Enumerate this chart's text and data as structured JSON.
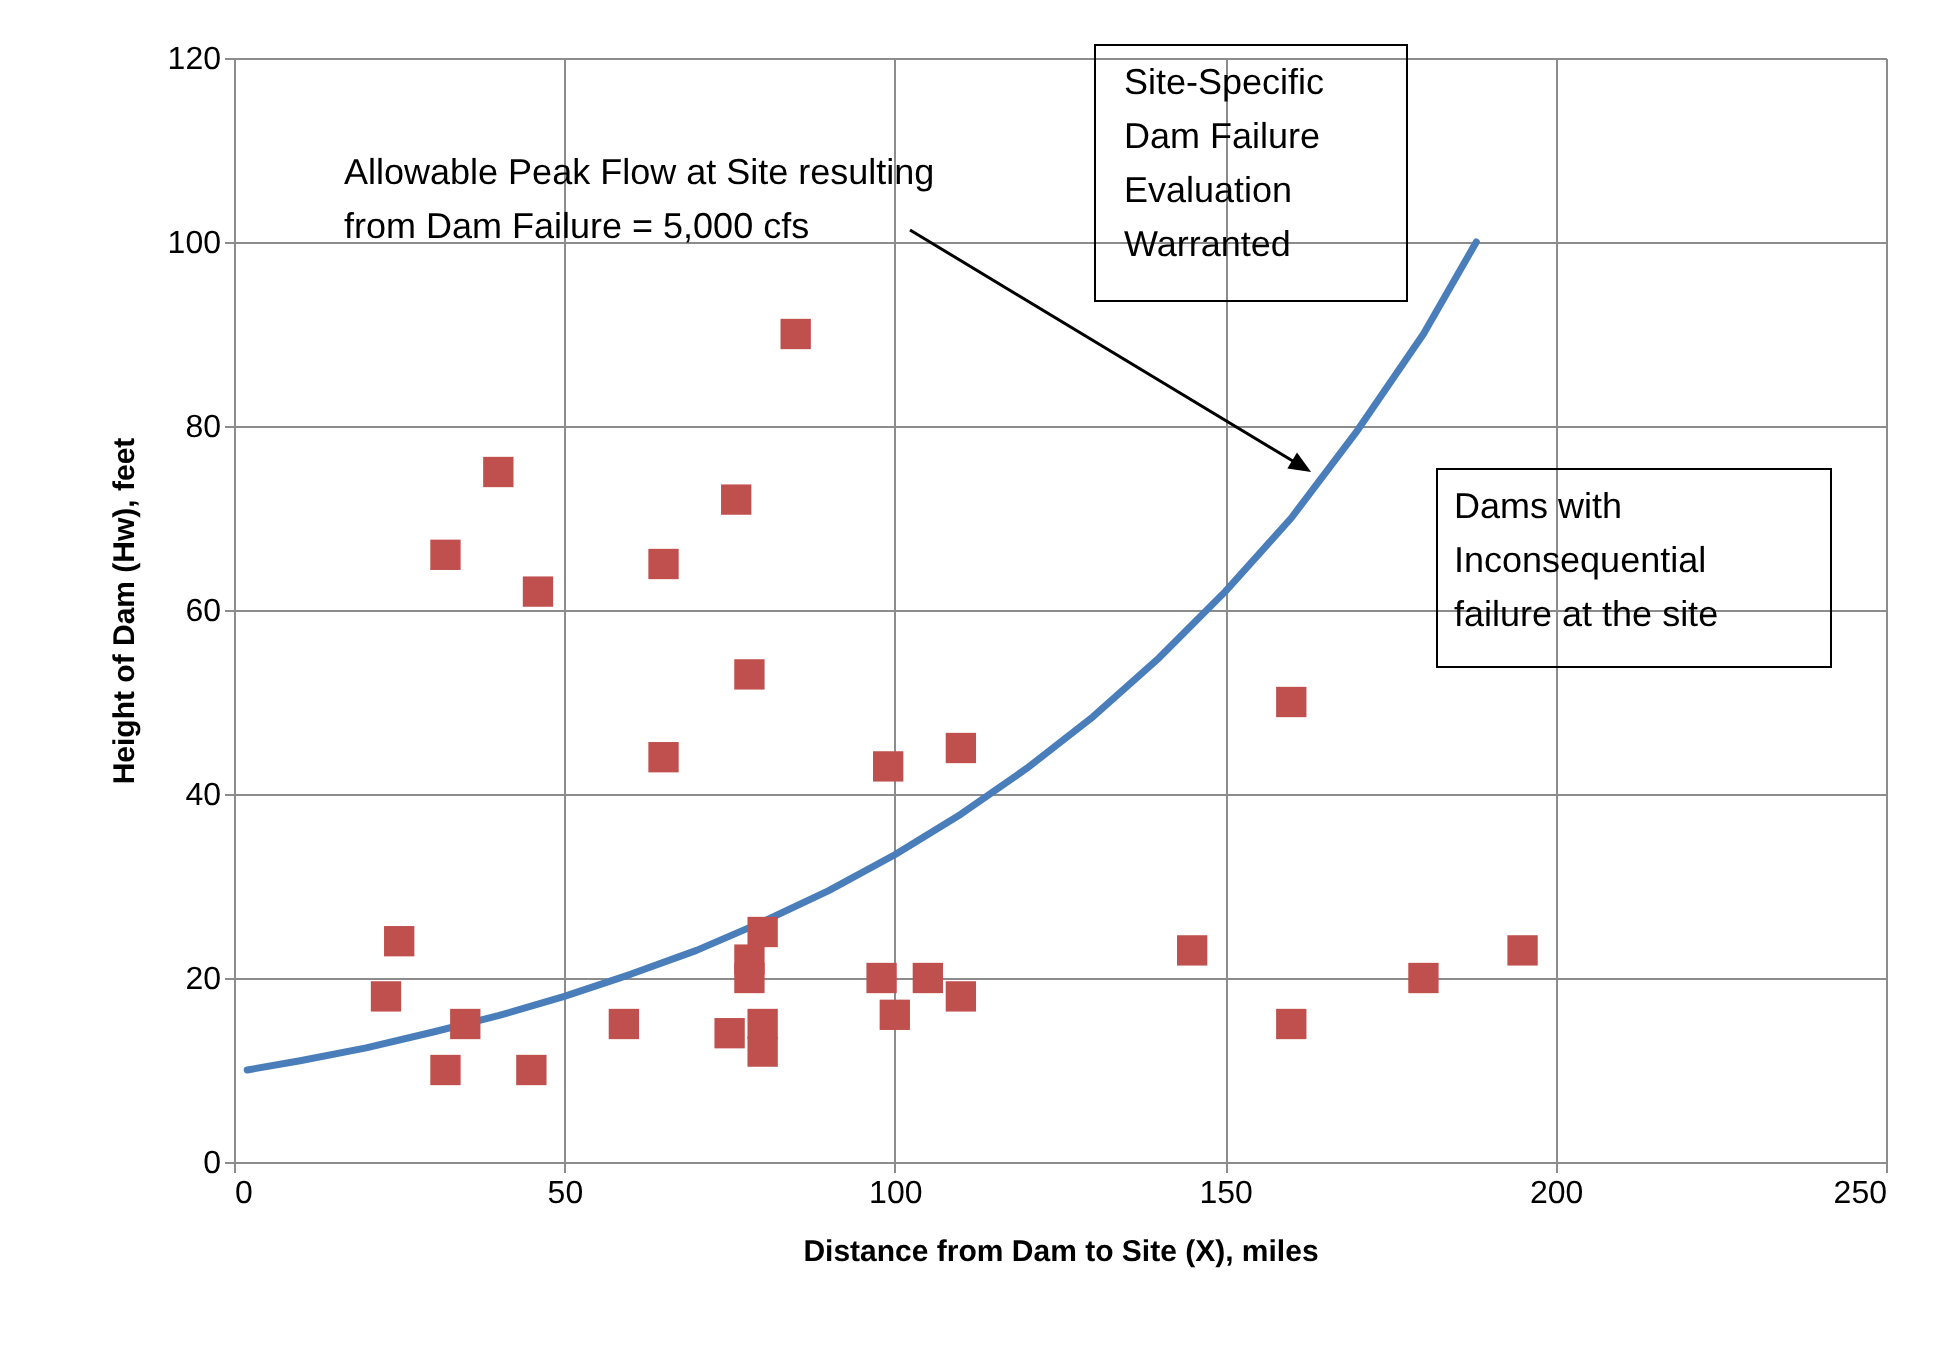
{
  "chart_data": {
    "type": "scatter",
    "xlabel": "Distance from Dam to Site (X), miles",
    "ylabel": "Height of Dam (Hw), feet",
    "xlim": [
      0,
      250
    ],
    "xticks": [
      0,
      50,
      100,
      150,
      200,
      250
    ],
    "ylim": [
      0,
      120
    ],
    "yticks": [
      0,
      20,
      40,
      60,
      80,
      100,
      120
    ],
    "grid": true,
    "series": [
      {
        "type": "line",
        "color": "#4a7ebb",
        "marker": "none",
        "line_style": "solid",
        "x": [
          2,
          10,
          20,
          30,
          40,
          50,
          60,
          70,
          80,
          90,
          100,
          110,
          120,
          130,
          140,
          150,
          160,
          170,
          180,
          188
        ],
        "values": [
          10,
          11,
          12.4,
          14.1,
          15.9,
          18,
          20.4,
          23,
          26.1,
          29.5,
          33.4,
          37.8,
          42.8,
          48.4,
          54.8,
          62,
          70,
          79.5,
          90,
          100
        ]
      },
      {
        "color": "#c0504d",
        "marker": "square",
        "x": [
          23,
          25,
          32,
          32,
          35,
          40,
          46,
          45,
          59,
          65,
          65,
          76,
          75,
          78,
          78,
          78,
          80,
          80,
          80,
          85,
          99,
          98,
          100,
          105,
          110,
          110,
          145,
          160,
          160,
          180,
          195
        ],
        "values": [
          18,
          24,
          66,
          10,
          15,
          75,
          62,
          10,
          15,
          65,
          44,
          72,
          14,
          53,
          22,
          20,
          25,
          15,
          12,
          90,
          43,
          20,
          16,
          20,
          45,
          18,
          23,
          50,
          15,
          20,
          23
        ]
      }
    ],
    "annotations": [
      {
        "text": "Allowable Peak Flow at Site resulting\nfrom Dam Failure = 5,000 cfs",
        "x": 163,
        "y": 75
      },
      "Site-Specific\nDam Failure\nEvaluation\nWarranted",
      "Dams with\nInconsequential\nfailure at the site"
    ]
  }
}
